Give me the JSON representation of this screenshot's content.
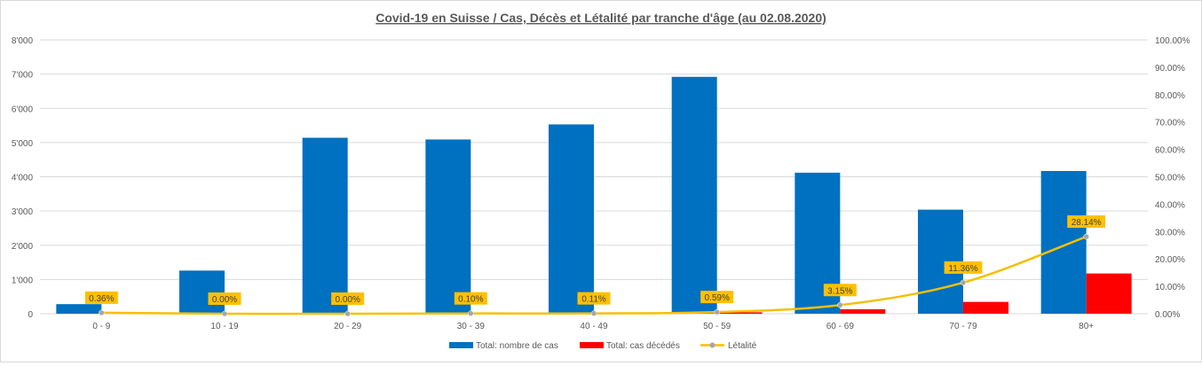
{
  "chart_data": {
    "type": "bar",
    "title": "Covid-19 en Suisse / Cas, Décès et Létalité par tranche d'âge (au 02.08.2020)",
    "categories": [
      "0 - 9",
      "10 - 19",
      "20 - 29",
      "30 - 39",
      "40 - 49",
      "50 - 59",
      "60 - 69",
      "70 - 79",
      "80+"
    ],
    "series": [
      {
        "name": "Total: nombre de cas",
        "kind": "bar",
        "axis": "left",
        "color": "#0070c0",
        "values": [
          280,
          1260,
          5140,
          5090,
          5530,
          6920,
          4120,
          3040,
          4170
        ]
      },
      {
        "name": "Total: cas décédés",
        "kind": "bar",
        "axis": "left",
        "color": "#ff0000",
        "values": [
          1,
          0,
          0,
          5,
          6,
          41,
          130,
          345,
          1175
        ]
      },
      {
        "name": "Létalité",
        "kind": "line",
        "axis": "right",
        "color": "#f5c000",
        "values": [
          0.36,
          0.0,
          0.0,
          0.1,
          0.11,
          0.59,
          3.15,
          11.36,
          28.14
        ],
        "labels": [
          "0.36%",
          "0.00%",
          "0.00%",
          "0.10%",
          "0.11%",
          "0.59%",
          "3.15%",
          "11.36%",
          "28.14%"
        ]
      }
    ],
    "y_left": {
      "range": [
        0,
        8000
      ],
      "ticks": [
        0,
        1000,
        2000,
        3000,
        4000,
        5000,
        6000,
        7000,
        8000
      ],
      "tick_labels": [
        "0",
        "1'000",
        "2'000",
        "3'000",
        "4'000",
        "5'000",
        "6'000",
        "7'000",
        "8'000"
      ]
    },
    "y_right": {
      "range": [
        0,
        100
      ],
      "ticks": [
        0,
        10,
        20,
        30,
        40,
        50,
        60,
        70,
        80,
        90,
        100
      ],
      "tick_labels": [
        "0.00%",
        "10.00%",
        "20.00%",
        "30.00%",
        "40.00%",
        "50.00%",
        "60.00%",
        "70.00%",
        "80.00%",
        "90.00%",
        "100.00%"
      ]
    },
    "grid": true,
    "legend": "bottom",
    "colors": {
      "gridline": "#d9d9d9",
      "label_bg": "#ffc000",
      "marker": "#a6a6a6"
    }
  }
}
